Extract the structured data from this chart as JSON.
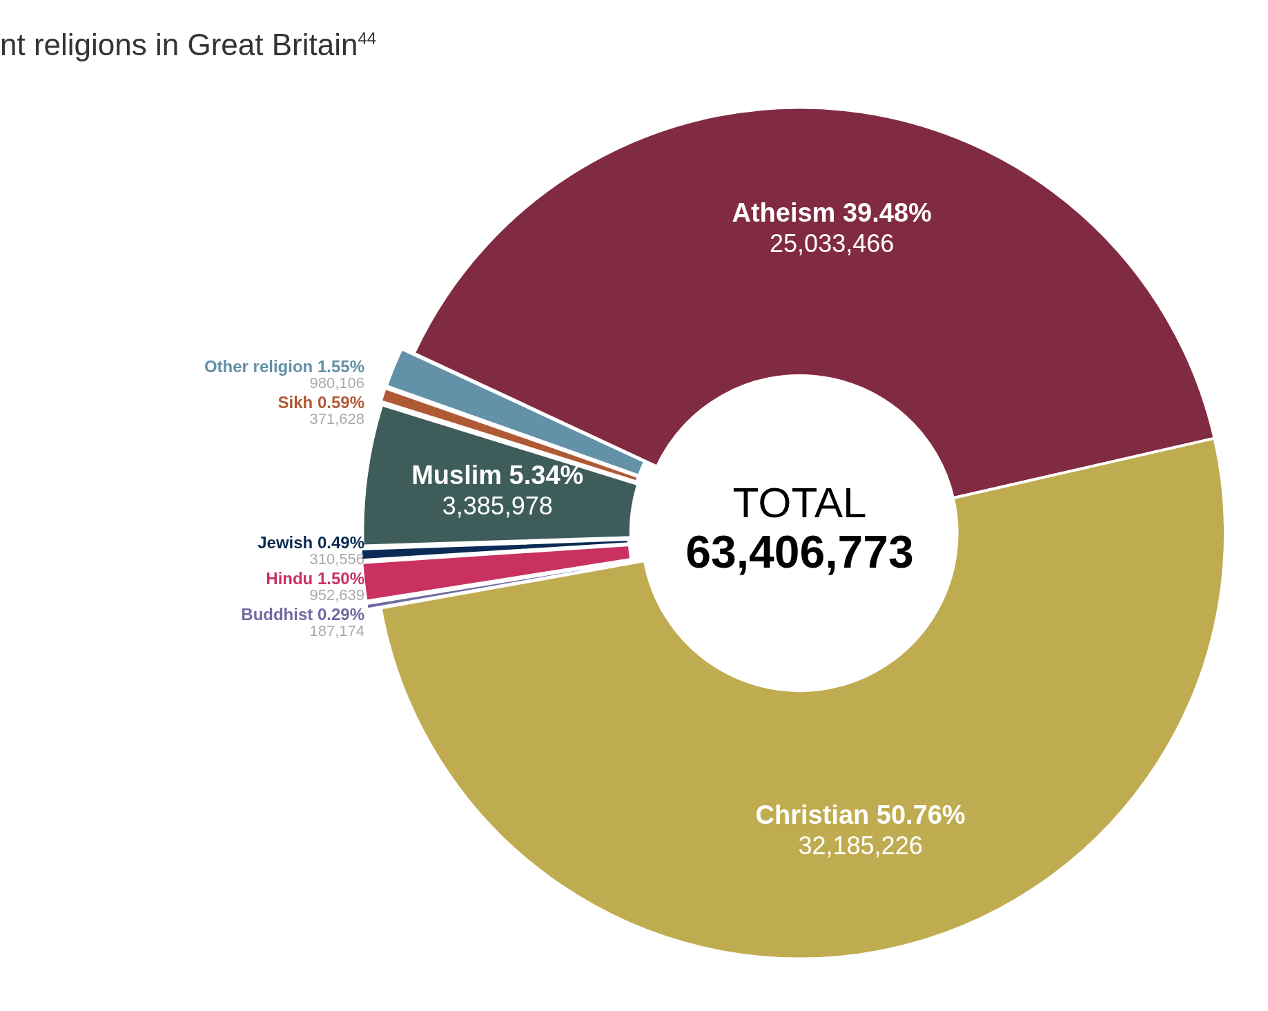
{
  "chart_data": {
    "type": "donut",
    "title": "nt religions in Great Britain$^{44}$",
    "categories": [
      "Atheism",
      "Christian",
      "Buddhist",
      "Hindu",
      "Jewish",
      "Muslim",
      "Sikh",
      "Other religion"
    ],
    "values": [
      39.48,
      50.76,
      0.29,
      1.5,
      0.49,
      5.34,
      0.59,
      1.55
    ],
    "colors": [
      "#812b42",
      "#c0ac50",
      "#6f6aa0",
      "#c93260",
      "#0b2a55",
      "#3e5c5a",
      "#b05a35",
      "#6391a7"
    ],
    "value_labels": [
      "39.48%",
      "50.76%",
      "0.29%",
      "1.50%",
      "0.49%",
      "5.34%",
      "0.59%",
      "1.55%"
    ],
    "annotations": [
      "TOTAL",
      "63,406,773",
      {
        "text": "25,033,466",
        "x": "Atheism"
      },
      {
        "text": "32,185,226",
        "x": "Christian"
      },
      {
        "text": "187,174",
        "x": "Buddhist"
      },
      {
        "text": "952,639",
        "x": "Hindu"
      },
      {
        "text": "310,556",
        "x": "Jewish"
      },
      {
        "text": "3,385,978",
        "x": "Muslim"
      },
      {
        "text": "371,628",
        "x": "Sikh"
      },
      {
        "text": "980,106",
        "x": "Other religion"
      }
    ],
    "legend": false
  }
}
